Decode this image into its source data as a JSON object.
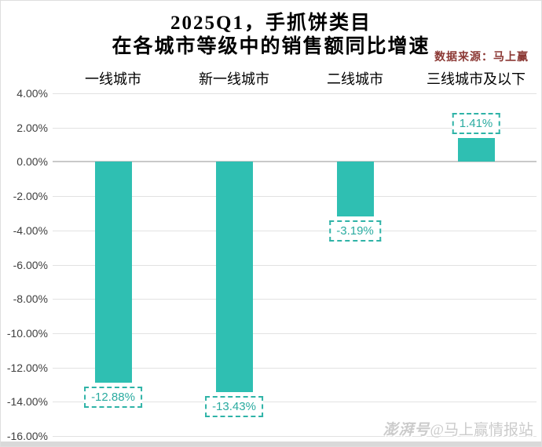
{
  "title": {
    "line1": "2025Q1，手抓饼类目",
    "line2": "在各城市等级中的销售额同比增速"
  },
  "source_note": "数据来源：马上赢",
  "watermark": {
    "logo": "澎湃号",
    "handle": "@马上赢情报站"
  },
  "colors": {
    "bar": "#2fbfb2",
    "value_label_text": "#2aaba0",
    "value_label_border": "#2fb3a7",
    "gridline": "#e2e2e2",
    "zero_line": "#c9c9c9",
    "axis_text": "#3f3f3f",
    "source_text": "#8b3834",
    "watermark_text": "#cbcbcb"
  },
  "chart_data": {
    "type": "bar",
    "categories": [
      "一线城市",
      "新一线城市",
      "二线城市",
      "三线城市及以下"
    ],
    "values": [
      -12.88,
      -13.43,
      -3.19,
      1.41
    ],
    "value_labels": [
      "-12.88%",
      "-13.43%",
      "-3.19%",
      "1.41%"
    ],
    "title": "2025Q1，手抓饼类目 在各城市等级中的销售额同比增速",
    "xlabel": "",
    "ylabel": "",
    "ylim": [
      -16,
      4
    ],
    "ytick_step": 2,
    "yticks": [
      {
        "v": 4,
        "label": "4.00%"
      },
      {
        "v": 2,
        "label": "2.00%"
      },
      {
        "v": 0,
        "label": "0.00%"
      },
      {
        "v": -2,
        "label": "-2.00%"
      },
      {
        "v": -4,
        "label": "-4.00%"
      },
      {
        "v": -6,
        "label": "-6.00%"
      },
      {
        "v": -8,
        "label": "-8.00%"
      },
      {
        "v": -10,
        "label": "-10.00%"
      },
      {
        "v": -12,
        "label": "-12.00%"
      },
      {
        "v": -14,
        "label": "-14.00%"
      },
      {
        "v": -16,
        "label": "-16.00%"
      }
    ],
    "grid": true,
    "legend": false,
    "category_labels_position": "top"
  }
}
